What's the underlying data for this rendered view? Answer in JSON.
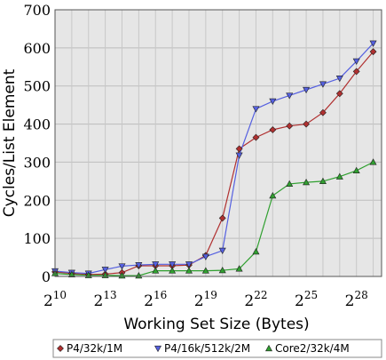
{
  "chart_data": {
    "type": "line",
    "xlabel": "Working Set Size (Bytes)",
    "ylabel": "Cycles/List Element",
    "x_scale": "log2",
    "xlim": [
      10,
      29.5
    ],
    "ylim": [
      0,
      700
    ],
    "grid": true,
    "y_ticks": [
      0,
      100,
      200,
      300,
      400,
      500,
      600,
      700
    ],
    "x_ticks": [
      {
        "base": "2",
        "exp": "10",
        "value": 10
      },
      {
        "base": "2",
        "exp": "13",
        "value": 13
      },
      {
        "base": "2",
        "exp": "16",
        "value": 16
      },
      {
        "base": "2",
        "exp": "19",
        "value": 19
      },
      {
        "base": "2",
        "exp": "22",
        "value": 22
      },
      {
        "base": "2",
        "exp": "25",
        "value": 25
      },
      {
        "base": "2",
        "exp": "28",
        "value": 28
      }
    ],
    "legend_position": "bottom",
    "series": [
      {
        "name": "P4/32k/1M",
        "color": "#b03030",
        "marker": "diamond",
        "x": [
          10,
          11,
          12,
          13,
          14,
          15,
          16,
          17,
          18,
          19,
          20,
          21,
          22,
          23,
          24,
          25,
          26,
          27,
          28,
          29
        ],
        "values": [
          12,
          8,
          5,
          6,
          10,
          28,
          28,
          28,
          30,
          55,
          153,
          335,
          365,
          385,
          395,
          400,
          430,
          480,
          538,
          590
        ]
      },
      {
        "name": "P4/16k/512k/2M",
        "color": "#5560e0",
        "marker": "triangle-down",
        "x": [
          10,
          11,
          12,
          13,
          14,
          15,
          16,
          17,
          18,
          19,
          20,
          21,
          22,
          23,
          24,
          25,
          26,
          27,
          28,
          29
        ],
        "values": [
          14,
          10,
          8,
          18,
          27,
          30,
          32,
          32,
          32,
          52,
          68,
          318,
          440,
          460,
          475,
          490,
          505,
          520,
          565,
          612
        ]
      },
      {
        "name": "Core2/32k/4M",
        "color": "#30a030",
        "marker": "triangle-up",
        "x": [
          10,
          11,
          12,
          13,
          14,
          15,
          16,
          17,
          18,
          19,
          20,
          21,
          22,
          23,
          24,
          25,
          26,
          27,
          28,
          29
        ],
        "values": [
          8,
          5,
          3,
          3,
          2,
          2,
          15,
          15,
          15,
          15,
          16,
          20,
          65,
          212,
          243,
          247,
          250,
          262,
          278,
          300
        ]
      }
    ]
  }
}
